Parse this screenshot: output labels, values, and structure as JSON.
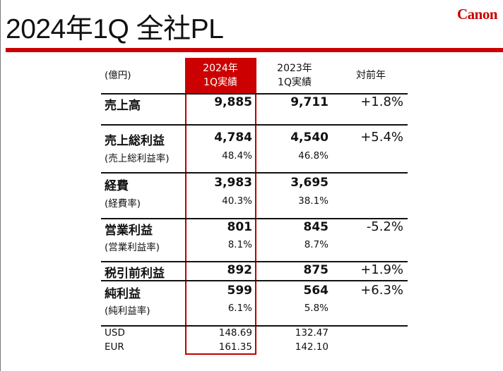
{
  "title": "2024年1Q 全社PL",
  "logo": "Canon",
  "header": {
    "unit": "(億円)",
    "col1": [
      "2024年",
      "1Q実績"
    ],
    "col2": [
      "2023年",
      "1Q実績"
    ],
    "col3": "対前年"
  },
  "rows": [
    {
      "label": "売上高",
      "v1": "9,885",
      "v2": "9,711",
      "yoy": "+1.8%"
    },
    {
      "label": "売上総利益",
      "v1": "4,784",
      "v2": "4,540",
      "yoy": "+5.4%",
      "sub": {
        "label": "(売上総利益率)",
        "v1": "48.4%",
        "v2": "46.8%"
      }
    },
    {
      "label": "経費",
      "v1": "3,983",
      "v2": "3,695",
      "yoy": "",
      "sub": {
        "label": "(経費率)",
        "v1": "40.3%",
        "v2": "38.1%"
      }
    },
    {
      "label": "営業利益",
      "v1": "801",
      "v2": "845",
      "yoy": "-5.2%",
      "sub": {
        "label": "(営業利益率)",
        "v1": "8.1%",
        "v2": "8.7%"
      }
    },
    {
      "label": "税引前利益",
      "v1": "892",
      "v2": "875",
      "yoy": "+1.9%"
    },
    {
      "label": "純利益",
      "v1": "599",
      "v2": "564",
      "yoy": "+6.3%",
      "sub": {
        "label": "(純利益率)",
        "v1": "6.1%",
        "v2": "5.8%"
      }
    }
  ],
  "fx": [
    {
      "label": "USD",
      "v1": "148.69",
      "v2": "132.47"
    },
    {
      "label": "EUR",
      "v1": "161.35",
      "v2": "142.10"
    }
  ]
}
